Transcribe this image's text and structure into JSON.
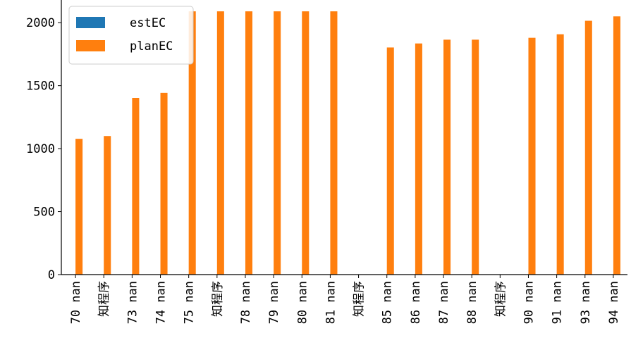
{
  "chart_data": {
    "type": "bar",
    "categories": [
      "70 nan",
      "知程序",
      "73 nan",
      "74 nan",
      "75 nan",
      "知程序",
      "78 nan",
      "79 nan",
      "80 nan",
      "81 nan",
      "知程序",
      "85 nan",
      "86 nan",
      "87 nan",
      "88 nan",
      "知程序",
      "90 nan",
      "91 nan",
      "93 nan",
      "94 nan"
    ],
    "series": [
      {
        "name": "estEC",
        "color": "#1f77b4",
        "values": [
          null,
          null,
          null,
          null,
          null,
          null,
          null,
          null,
          null,
          null,
          null,
          null,
          null,
          null,
          null,
          null,
          null,
          null,
          null,
          null
        ]
      },
      {
        "name": "planEC",
        "color": "#ff7f0e",
        "values": [
          1078,
          1100,
          1403,
          1443,
          2090,
          2090,
          2090,
          2090,
          2090,
          2090,
          null,
          1803,
          1835,
          1865,
          1865,
          null,
          1880,
          1908,
          2015,
          2050
        ]
      }
    ],
    "yticks": [
      0,
      500,
      1000,
      1500,
      2000
    ],
    "ylim": [
      0,
      2180
    ],
    "legend": "top-left",
    "grid": false,
    "title": "",
    "xlabel": "",
    "ylabel": ""
  }
}
